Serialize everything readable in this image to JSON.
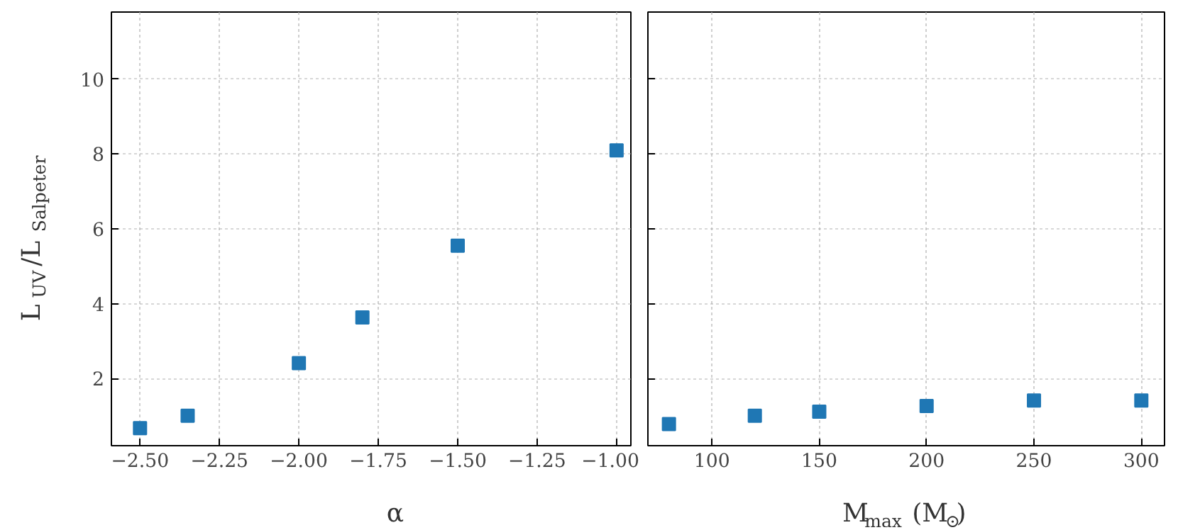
{
  "chart_data": [
    {
      "type": "scatter",
      "x": [
        -2.5,
        -2.35,
        -2.0,
        -1.8,
        -1.5,
        -1.0
      ],
      "values": [
        0.67,
        1.0,
        2.41,
        3.63,
        5.55,
        8.1
      ],
      "color": "#1f77b4",
      "marker": "square",
      "xlabel": "α",
      "ylabel": "L$_{UV}$/L$_{Salpeter}$",
      "xlim": [
        -2.59,
        -0.955
      ],
      "ylim": [
        0.2,
        11.8
      ],
      "xticks": [
        {
          "value": -2.5,
          "label": "−2.50"
        },
        {
          "value": -2.25,
          "label": "−2.25"
        },
        {
          "value": -2.0,
          "label": "−2.00"
        },
        {
          "value": -1.75,
          "label": "−1.75"
        },
        {
          "value": -1.5,
          "label": "−1.50"
        },
        {
          "value": -1.25,
          "label": "−1.25"
        },
        {
          "value": -1.0,
          "label": "−1.00"
        }
      ],
      "yticks": [
        2,
        4,
        6,
        8,
        10
      ],
      "grid": true
    },
    {
      "type": "scatter",
      "x": [
        80,
        120,
        150,
        200,
        250,
        300
      ],
      "values": [
        0.78,
        1.0,
        1.11,
        1.26,
        1.41,
        1.41
      ],
      "color": "#1f77b4",
      "marker": "square",
      "xlabel": "M$_{max}$ (M$_{⊙}$)",
      "xlim": [
        70.2,
        310.8
      ],
      "ylim": [
        0.2,
        11.8
      ],
      "xticks": [
        100,
        150,
        200,
        250,
        300
      ],
      "yticks": [
        2,
        4,
        6,
        8,
        10
      ],
      "tick_labels": "x",
      "grid": true
    }
  ]
}
